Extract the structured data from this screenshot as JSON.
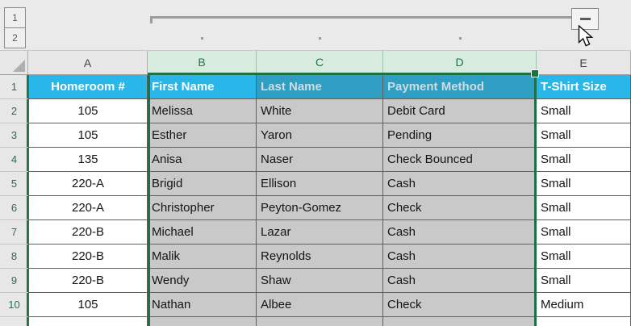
{
  "colors": {
    "header_fill": "#29B6E8",
    "header_fill_selected": "#2E9FC2",
    "header_text": "#FFFFFF",
    "header_text_selected": "#CFDDE0",
    "selection_fill": "#C9C9C9",
    "accent_green": "#217346",
    "accent_green_dark": "#1E7145",
    "selected_header_bg": "#D7EBDF",
    "grid_header_bg": "#E7E7E7",
    "outline_bg": "#EAEAEA",
    "cell_border": "#5F5F5F",
    "outline_line": "#9C9C9C"
  },
  "outline": {
    "level_buttons": [
      "1",
      "2"
    ],
    "collapse_button_glyph": "−",
    "icons": {
      "minus-icon": "−",
      "select-all-triangle-icon": "◣",
      "cursor-icon": "arrow-pointer"
    }
  },
  "sheet": {
    "columns": [
      {
        "letter": "A",
        "selected": false
      },
      {
        "letter": "B",
        "selected": true
      },
      {
        "letter": "C",
        "selected": true
      },
      {
        "letter": "D",
        "selected": true
      },
      {
        "letter": "E",
        "selected": false
      }
    ],
    "active_cell_column_index": 1,
    "selected_column_range": [
      1,
      3
    ],
    "header_row": {
      "number": "1",
      "cells": [
        "Homeroom #",
        "First Name",
        "Last Name",
        "Payment Method",
        "T-Shirt Size"
      ]
    },
    "rows": [
      {
        "number": "2",
        "cells": [
          "105",
          "Melissa",
          "White",
          "Debit Card",
          "Small"
        ]
      },
      {
        "number": "3",
        "cells": [
          "105",
          "Esther",
          "Yaron",
          "Pending",
          "Small"
        ]
      },
      {
        "number": "4",
        "cells": [
          "135",
          "Anisa",
          "Naser",
          "Check Bounced",
          "Small"
        ]
      },
      {
        "number": "5",
        "cells": [
          "220-A",
          "Brigid",
          "Ellison",
          "Cash",
          "Small"
        ]
      },
      {
        "number": "6",
        "cells": [
          "220-A",
          "Christopher",
          "Peyton-Gomez",
          "Check",
          "Small"
        ]
      },
      {
        "number": "7",
        "cells": [
          "220-B",
          "Michael",
          "Lazar",
          "Cash",
          "Small"
        ]
      },
      {
        "number": "8",
        "cells": [
          "220-B",
          "Malik",
          "Reynolds",
          "Cash",
          "Small"
        ]
      },
      {
        "number": "9",
        "cells": [
          "220-B",
          "Wendy",
          "Shaw",
          "Cash",
          "Small"
        ]
      },
      {
        "number": "10",
        "cells": [
          "105",
          "Nathan",
          "Albee",
          "Check",
          "Medium"
        ]
      }
    ]
  }
}
